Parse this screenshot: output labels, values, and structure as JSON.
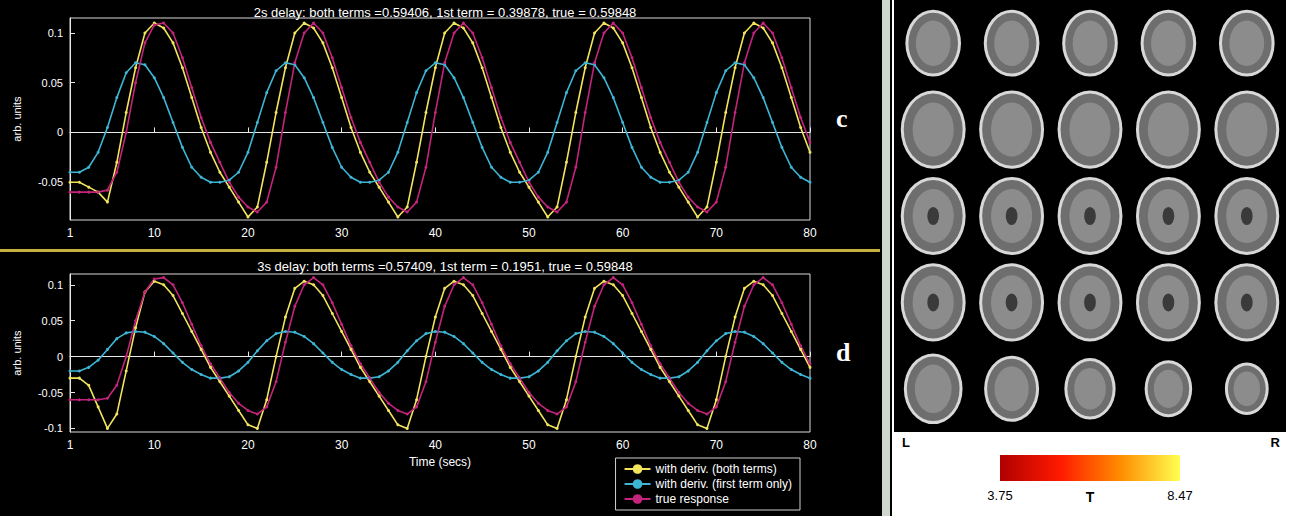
{
  "chart_data": [
    {
      "type": "line",
      "title": "2s delay: both terms =0.59406, 1st term = 0.39878, true = 0.59848",
      "panel_label": "c",
      "ylabel": "arb. units",
      "x": [
        1,
        2,
        3,
        4,
        5,
        6,
        7,
        8,
        9,
        10,
        11,
        12,
        13,
        14,
        15,
        16,
        17,
        18,
        19,
        20,
        21,
        22,
        23,
        24,
        25,
        26,
        27,
        28,
        29,
        30,
        31,
        32,
        33,
        34,
        35,
        36,
        37,
        38,
        39,
        40,
        41,
        42,
        43,
        44,
        45,
        46,
        47,
        48,
        49,
        50,
        51,
        52,
        53,
        54,
        55,
        56,
        57,
        58,
        59,
        60,
        61,
        62,
        63,
        64,
        65,
        66,
        67,
        68,
        69,
        70,
        71,
        72,
        73,
        74,
        75,
        76,
        77,
        78,
        79,
        80
      ],
      "xlim": [
        1,
        80
      ],
      "xticks": [
        1,
        10,
        20,
        30,
        40,
        50,
        60,
        70,
        80
      ],
      "ylim": [
        -0.088,
        0.115
      ],
      "yticks": [
        -0.05,
        0,
        0.05,
        0.1
      ],
      "grid": false,
      "series": [
        {
          "color": "#f2e45c",
          "marker": "dot",
          "line_style": "solid",
          "values": [
            -0.05,
            -0.05,
            -0.055,
            -0.06,
            -0.07,
            -0.03,
            0.02,
            0.065,
            0.1,
            0.11,
            0.105,
            0.09,
            0.065,
            0.035,
            0.005,
            -0.02,
            -0.04,
            -0.055,
            -0.07,
            -0.085,
            -0.075,
            -0.03,
            0.02,
            0.065,
            0.1,
            0.11,
            0.105,
            0.09,
            0.065,
            0.035,
            0.005,
            -0.02,
            -0.04,
            -0.055,
            -0.07,
            -0.085,
            -0.075,
            -0.03,
            0.02,
            0.065,
            0.1,
            0.11,
            0.105,
            0.09,
            0.065,
            0.035,
            0.005,
            -0.02,
            -0.04,
            -0.055,
            -0.07,
            -0.085,
            -0.075,
            -0.03,
            0.02,
            0.065,
            0.1,
            0.11,
            0.105,
            0.09,
            0.065,
            0.035,
            0.005,
            -0.02,
            -0.04,
            -0.055,
            -0.07,
            -0.085,
            -0.075,
            -0.03,
            0.02,
            0.065,
            0.1,
            0.11,
            0.105,
            0.09,
            0.065,
            0.035,
            0.005,
            -0.02
          ]
        },
        {
          "color": "#3db6d6",
          "marker": "dot",
          "line_style": "solid",
          "values": [
            -0.04,
            -0.04,
            -0.035,
            -0.02,
            0.005,
            0.035,
            0.06,
            0.07,
            0.068,
            0.055,
            0.035,
            0.01,
            -0.015,
            -0.035,
            -0.045,
            -0.05,
            -0.05,
            -0.048,
            -0.04,
            -0.02,
            0.01,
            0.04,
            0.062,
            0.07,
            0.068,
            0.055,
            0.035,
            0.01,
            -0.015,
            -0.035,
            -0.045,
            -0.05,
            -0.05,
            -0.048,
            -0.04,
            -0.02,
            0.01,
            0.04,
            0.062,
            0.07,
            0.068,
            0.055,
            0.035,
            0.01,
            -0.015,
            -0.035,
            -0.045,
            -0.05,
            -0.05,
            -0.048,
            -0.04,
            -0.02,
            0.01,
            0.04,
            0.062,
            0.07,
            0.068,
            0.055,
            0.035,
            0.01,
            -0.015,
            -0.035,
            -0.045,
            -0.05,
            -0.05,
            -0.048,
            -0.04,
            -0.02,
            0.01,
            0.04,
            0.062,
            0.07,
            0.068,
            0.055,
            0.035,
            0.01,
            -0.015,
            -0.035,
            -0.045,
            -0.05
          ]
        },
        {
          "color": "#c4247c",
          "marker": "dot",
          "line_style": "solid",
          "values": [
            -0.06,
            -0.06,
            -0.06,
            -0.06,
            -0.058,
            -0.04,
            0,
            0.05,
            0.09,
            0.108,
            0.11,
            0.1,
            0.075,
            0.045,
            0.015,
            -0.01,
            -0.03,
            -0.05,
            -0.065,
            -0.075,
            -0.08,
            -0.07,
            -0.035,
            0.02,
            0.07,
            0.1,
            0.11,
            0.1,
            0.075,
            0.045,
            0.015,
            -0.01,
            -0.03,
            -0.05,
            -0.065,
            -0.075,
            -0.08,
            -0.07,
            -0.035,
            0.02,
            0.07,
            0.1,
            0.11,
            0.1,
            0.075,
            0.045,
            0.015,
            -0.01,
            -0.03,
            -0.05,
            -0.065,
            -0.075,
            -0.08,
            -0.07,
            -0.035,
            0.02,
            0.07,
            0.1,
            0.11,
            0.1,
            0.075,
            0.045,
            0.015,
            -0.01,
            -0.03,
            -0.05,
            -0.065,
            -0.075,
            -0.08,
            -0.07,
            -0.035,
            0.02,
            0.07,
            0.1,
            0.11,
            0.1,
            0.075,
            0.045,
            0.015,
            -0.01
          ]
        }
      ]
    },
    {
      "type": "line",
      "title": "3s delay: both terms =0.57409, 1st term = 0.1951, true = 0.59848",
      "panel_label": "d",
      "xlabel": "Time (secs)",
      "ylabel": "arb. units",
      "x": [
        1,
        2,
        3,
        4,
        5,
        6,
        7,
        8,
        9,
        10,
        11,
        12,
        13,
        14,
        15,
        16,
        17,
        18,
        19,
        20,
        21,
        22,
        23,
        24,
        25,
        26,
        27,
        28,
        29,
        30,
        31,
        32,
        33,
        34,
        35,
        36,
        37,
        38,
        39,
        40,
        41,
        42,
        43,
        44,
        45,
        46,
        47,
        48,
        49,
        50,
        51,
        52,
        53,
        54,
        55,
        56,
        57,
        58,
        59,
        60,
        61,
        62,
        63,
        64,
        65,
        66,
        67,
        68,
        69,
        70,
        71,
        72,
        73,
        74,
        75,
        76,
        77,
        78,
        79,
        80
      ],
      "xlim": [
        1,
        80
      ],
      "xticks": [
        1,
        10,
        20,
        30,
        40,
        50,
        60,
        70,
        80
      ],
      "ylim": [
        -0.105,
        0.115
      ],
      "yticks": [
        -0.1,
        -0.05,
        0,
        0.05,
        0.1
      ],
      "grid": false,
      "legend": "lower right",
      "series": [
        {
          "name": "with deriv. (both terms)",
          "color": "#f2e45c",
          "marker": "dot",
          "line_style": "solid",
          "values": [
            -0.03,
            -0.03,
            -0.04,
            -0.07,
            -0.1,
            -0.08,
            -0.02,
            0.04,
            0.09,
            0.105,
            0.1,
            0.085,
            0.06,
            0.035,
            0.01,
            -0.015,
            -0.035,
            -0.055,
            -0.075,
            -0.095,
            -0.1,
            -0.06,
            0,
            0.055,
            0.095,
            0.105,
            0.1,
            0.085,
            0.06,
            0.035,
            0.01,
            -0.015,
            -0.035,
            -0.055,
            -0.075,
            -0.095,
            -0.1,
            -0.06,
            0,
            0.055,
            0.095,
            0.105,
            0.1,
            0.085,
            0.06,
            0.035,
            0.01,
            -0.015,
            -0.035,
            -0.055,
            -0.075,
            -0.095,
            -0.1,
            -0.06,
            0,
            0.055,
            0.095,
            0.105,
            0.1,
            0.085,
            0.06,
            0.035,
            0.01,
            -0.015,
            -0.035,
            -0.055,
            -0.075,
            -0.095,
            -0.1,
            -0.06,
            0,
            0.055,
            0.095,
            0.105,
            0.1,
            0.085,
            0.06,
            0.035,
            0.01,
            -0.015
          ]
        },
        {
          "name": "with deriv. (first term only)",
          "color": "#3db6d6",
          "marker": "dot",
          "line_style": "solid",
          "values": [
            -0.02,
            -0.02,
            -0.015,
            -0.005,
            0.01,
            0.025,
            0.033,
            0.035,
            0.034,
            0.028,
            0.018,
            0.005,
            -0.008,
            -0.018,
            -0.025,
            -0.03,
            -0.03,
            -0.028,
            -0.02,
            -0.008,
            0.008,
            0.022,
            0.032,
            0.035,
            0.034,
            0.028,
            0.018,
            0.005,
            -0.008,
            -0.018,
            -0.025,
            -0.03,
            -0.03,
            -0.028,
            -0.02,
            -0.008,
            0.008,
            0.022,
            0.032,
            0.035,
            0.034,
            0.028,
            0.018,
            0.005,
            -0.008,
            -0.018,
            -0.025,
            -0.03,
            -0.03,
            -0.028,
            -0.02,
            -0.008,
            0.008,
            0.022,
            0.032,
            0.035,
            0.034,
            0.028,
            0.018,
            0.005,
            -0.008,
            -0.018,
            -0.025,
            -0.03,
            -0.03,
            -0.028,
            -0.02,
            -0.008,
            0.008,
            0.022,
            0.032,
            0.035,
            0.034,
            0.028,
            0.018,
            0.005,
            -0.008,
            -0.018,
            -0.025,
            -0.03
          ]
        },
        {
          "name": "true response",
          "color": "#c4247c",
          "marker": "dot",
          "line_style": "solid",
          "values": [
            -0.06,
            -0.06,
            -0.06,
            -0.06,
            -0.058,
            -0.04,
            0,
            0.05,
            0.09,
            0.108,
            0.11,
            0.1,
            0.075,
            0.045,
            0.015,
            -0.01,
            -0.03,
            -0.05,
            -0.065,
            -0.075,
            -0.08,
            -0.07,
            -0.035,
            0.02,
            0.07,
            0.1,
            0.11,
            0.1,
            0.075,
            0.045,
            0.015,
            -0.01,
            -0.03,
            -0.05,
            -0.065,
            -0.075,
            -0.08,
            -0.07,
            -0.035,
            0.02,
            0.07,
            0.1,
            0.11,
            0.1,
            0.075,
            0.045,
            0.015,
            -0.01,
            -0.03,
            -0.05,
            -0.065,
            -0.075,
            -0.08,
            -0.07,
            -0.035,
            0.02,
            0.07,
            0.1,
            0.11,
            0.1,
            0.075,
            0.045,
            0.015,
            -0.01,
            -0.03,
            -0.05,
            -0.065,
            -0.075,
            -0.08,
            -0.07,
            -0.035,
            0.02,
            0.07,
            0.1,
            0.11,
            0.1,
            0.075,
            0.045,
            0.015,
            -0.01
          ]
        }
      ]
    }
  ],
  "image_panel": {
    "side_labels": [
      "L",
      "R"
    ],
    "colorbar": {
      "label": "T",
      "range": [
        3.75,
        8.47
      ],
      "ticks": [
        3.75,
        8.47
      ],
      "colors": [
        "#b00000",
        "#ff1a00",
        "#ff8c00",
        "#ffff50"
      ]
    }
  }
}
